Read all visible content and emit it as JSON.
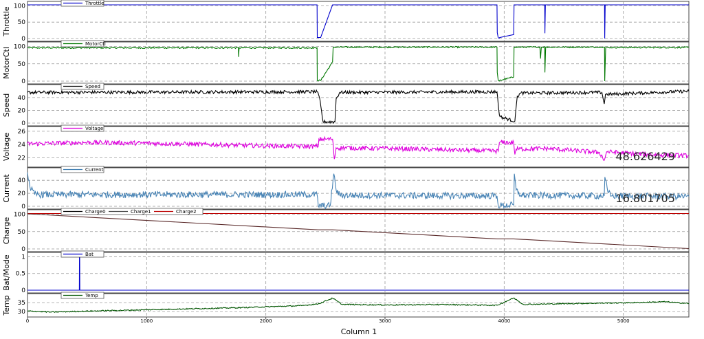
{
  "chart_data": {
    "type": "line",
    "xlabel": "Column 1",
    "xlim": [
      0,
      5550
    ],
    "xticks": [
      0,
      1000,
      2000,
      3000,
      4000,
      5000
    ],
    "grid": true,
    "panels": [
      {
        "id": "throttle",
        "ylabel": "Throttle",
        "ylim": [
          0,
          105
        ],
        "yticks": [
          0,
          50,
          100
        ],
        "legend": [
          {
            "name": "Throttle",
            "color": "#0000cc"
          }
        ],
        "series": [
          {
            "name": "Throttle",
            "color": "#0000cc",
            "points": [
              [
                0,
                103
              ],
              [
                2430,
                103
              ],
              [
                2432,
                3
              ],
              [
                2460,
                3
              ],
              [
                2560,
                103
              ],
              [
                3940,
                103
              ],
              [
                3942,
                18
              ],
              [
                3950,
                2
              ],
              [
                3958,
                1
              ],
              [
                3962,
                3
              ],
              [
                4080,
                12
              ],
              [
                4083,
                103
              ],
              [
                4340,
                103
              ],
              [
                4342,
                16
              ],
              [
                4346,
                103
              ],
              [
                4842,
                103
              ],
              [
                4844,
                0
              ],
              [
                4848,
                103
              ],
              [
                5550,
                103
              ]
            ]
          }
        ]
      },
      {
        "id": "motorctl",
        "ylabel": "MotorCtl",
        "ylim": [
          0,
          105
        ],
        "yticks": [
          0,
          50,
          100
        ],
        "legend": [
          {
            "name": "MotorCtl",
            "color": "#007700"
          }
        ],
        "series": [
          {
            "name": "MotorCtl",
            "color": "#007700",
            "noise": 2,
            "points": [
              [
                0,
                96
              ],
              [
                1770,
                96
              ],
              [
                1772,
                70
              ],
              [
                1776,
                96
              ],
              [
                2430,
                96
              ],
              [
                2432,
                2
              ],
              [
                2460,
                2
              ],
              [
                2560,
                55
              ],
              [
                2565,
                98
              ],
              [
                3940,
                98
              ],
              [
                3942,
                25
              ],
              [
                3950,
                2
              ],
              [
                3958,
                0
              ],
              [
                3962,
                2
              ],
              [
                4080,
                12
              ],
              [
                4083,
                98
              ],
              [
                4300,
                98
              ],
              [
                4305,
                65
              ],
              [
                4312,
                98
              ],
              [
                4340,
                98
              ],
              [
                4342,
                25
              ],
              [
                4348,
                98
              ],
              [
                4842,
                98
              ],
              [
                4844,
                0
              ],
              [
                4852,
                97
              ],
              [
                5550,
                97
              ]
            ]
          }
        ]
      },
      {
        "id": "speed",
        "ylabel": "Speed",
        "ylim": [
          0,
          56
        ],
        "yticks": [
          0,
          20,
          40
        ],
        "legend": [
          {
            "name": "Speed",
            "color": "#000000"
          }
        ],
        "readout": "",
        "series": [
          {
            "name": "Speed",
            "color": "#000000",
            "noise": 2.5,
            "points": [
              [
                0,
                48
              ],
              [
                2430,
                49
              ],
              [
                2450,
                40
              ],
              [
                2480,
                2
              ],
              [
                2580,
                2
              ],
              [
                2590,
                38
              ],
              [
                2620,
                48
              ],
              [
                3940,
                49
              ],
              [
                3955,
                20
              ],
              [
                3965,
                10
              ],
              [
                4090,
                3
              ],
              [
                4110,
                42
              ],
              [
                4140,
                47
              ],
              [
                4820,
                48
              ],
              [
                4840,
                30
              ],
              [
                4850,
                45
              ],
              [
                5550,
                50
              ]
            ]
          }
        ]
      },
      {
        "id": "voltage",
        "ylabel": "Voltage",
        "ylim": [
          21,
          26.3
        ],
        "yticks": [
          22,
          24,
          26
        ],
        "legend": [
          {
            "name": "Voltage",
            "color": "#dd00dd"
          }
        ],
        "readout": "48.626429",
        "series": [
          {
            "name": "Voltage",
            "color": "#dd00dd",
            "noise": 0.35,
            "points": [
              [
                0,
                24.1
              ],
              [
                500,
                24.3
              ],
              [
                1000,
                24.2
              ],
              [
                1500,
                24.0
              ],
              [
                2000,
                23.8
              ],
              [
                2440,
                23.7
              ],
              [
                2445,
                24.8
              ],
              [
                2560,
                24.8
              ],
              [
                2575,
                21.8
              ],
              [
                2590,
                23.5
              ],
              [
                3000,
                23.4
              ],
              [
                3500,
                23.2
              ],
              [
                3950,
                23.0
              ],
              [
                3960,
                24.3
              ],
              [
                4080,
                24.3
              ],
              [
                4090,
                22.5
              ],
              [
                4100,
                23.3
              ],
              [
                4350,
                23.4
              ],
              [
                4800,
                22.8
              ],
              [
                4840,
                21.6
              ],
              [
                4860,
                22.9
              ],
              [
                5200,
                22.5
              ],
              [
                5550,
                22.3
              ]
            ]
          }
        ]
      },
      {
        "id": "current",
        "ylabel": "Current",
        "ylim": [
          0,
          55
        ],
        "yticks": [
          0,
          20,
          40
        ],
        "legend": [
          {
            "name": "Current",
            "color": "#4682b4"
          }
        ],
        "readout": "16.801705",
        "series": [
          {
            "name": "Current",
            "color": "#4682b4",
            "noise": 5,
            "points": [
              [
                0,
                52
              ],
              [
                20,
                30
              ],
              [
                60,
                18
              ],
              [
                2430,
                18
              ],
              [
                2440,
                1
              ],
              [
                2540,
                1
              ],
              [
                2570,
                50
              ],
              [
                2590,
                25
              ],
              [
                2620,
                17
              ],
              [
                3940,
                16
              ],
              [
                3950,
                1
              ],
              [
                4080,
                2
              ],
              [
                4085,
                50
              ],
              [
                4100,
                25
              ],
              [
                4140,
                17
              ],
              [
                4840,
                16
              ],
              [
                4845,
                45
              ],
              [
                4870,
                22
              ],
              [
                4900,
                16
              ],
              [
                5550,
                15
              ]
            ]
          }
        ]
      },
      {
        "id": "charge",
        "ylabel": "Charge",
        "ylim": [
          0,
          105
        ],
        "yticks": [
          0,
          50,
          100
        ],
        "legend": [
          {
            "name": "Charge0",
            "color": "#000000"
          },
          {
            "name": "Charge1",
            "color": "#444444"
          },
          {
            "name": "Charge2",
            "color": "#bb0000"
          }
        ],
        "series": [
          {
            "name": "Charge2",
            "color": "#bb0000",
            "points": [
              [
                0,
                102
              ],
              [
                5550,
                102
              ]
            ]
          },
          {
            "name": "Charge0",
            "color": "#5a2a2a",
            "points": [
              [
                0,
                101
              ],
              [
                2440,
                55
              ],
              [
                2560,
                55
              ],
              [
                3940,
                29
              ],
              [
                4080,
                29
              ],
              [
                5550,
                1
              ]
            ]
          }
        ]
      },
      {
        "id": "batmode",
        "ylabel": "Bat/Mode",
        "ylim": [
          0,
          1.05
        ],
        "yticks": [
          0,
          0.5,
          1
        ],
        "legend": [
          {
            "name": "Bat",
            "color": "#0000cc"
          }
        ],
        "series": [
          {
            "name": "Bat",
            "color": "#0000cc",
            "points": [
              [
                0,
                0
              ],
              [
                435,
                0
              ],
              [
                436,
                1
              ],
              [
                438,
                1
              ],
              [
                439,
                0
              ],
              [
                5550,
                0
              ]
            ]
          }
        ]
      },
      {
        "id": "temp",
        "ylabel": "Temp",
        "ylim": [
          28.5,
          38.5
        ],
        "yticks": [
          30,
          35
        ],
        "legend": [
          {
            "name": "Temp",
            "color": "#005500"
          }
        ],
        "series": [
          {
            "name": "Temp",
            "color": "#005500",
            "noise": 0.3,
            "points": [
              [
                0,
                30.3
              ],
              [
                200,
                29.7
              ],
              [
                600,
                30.4
              ],
              [
                1200,
                31.3
              ],
              [
                1800,
                32.2
              ],
              [
                2300,
                33.3
              ],
              [
                2440,
                34.3
              ],
              [
                2560,
                37.5
              ],
              [
                2640,
                34.0
              ],
              [
                3000,
                33.7
              ],
              [
                3500,
                33.9
              ],
              [
                3940,
                33.5
              ],
              [
                4080,
                37.6
              ],
              [
                4160,
                34.0
              ],
              [
                4600,
                34.5
              ],
              [
                5100,
                35.0
              ],
              [
                5350,
                35.5
              ],
              [
                5550,
                34.5
              ]
            ]
          }
        ]
      }
    ]
  }
}
